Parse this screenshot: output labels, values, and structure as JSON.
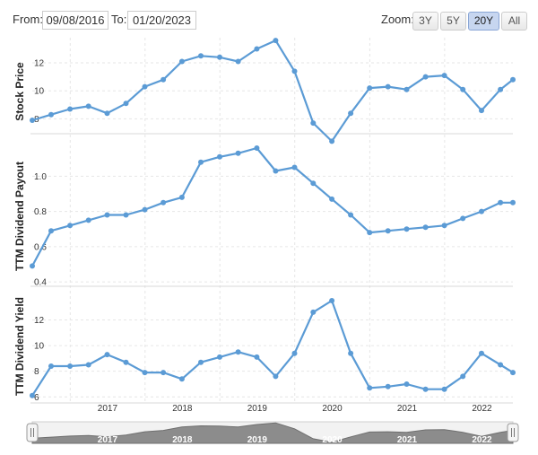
{
  "range": {
    "from_label": "From:",
    "from_value": "09/08/2016",
    "to_label": "To:",
    "to_value": "01/20/2023"
  },
  "zoom": {
    "label": "Zoom:",
    "buttons": [
      {
        "label": "3Y",
        "active": false
      },
      {
        "label": "5Y",
        "active": false
      },
      {
        "label": "20Y",
        "active": true
      },
      {
        "label": "All",
        "active": false
      }
    ]
  },
  "colors": {
    "series": "#5b9bd5",
    "grid": "#e6e6e6",
    "navigator_fill": "#8c8c8c"
  },
  "navigator": {
    "handle_icon": "grip-handle-icon",
    "years": [
      "2017",
      "2018",
      "2019",
      "2020",
      "2021",
      "2022"
    ]
  },
  "chart_data": [
    {
      "type": "line",
      "ylabel": "Stock Price",
      "y_ticks": [
        "8",
        "10",
        "12"
      ],
      "ylim": [
        7.0,
        13.8
      ],
      "x": [
        "2016-06-30",
        "2016-09-30",
        "2016-12-31",
        "2017-03-31",
        "2017-06-30",
        "2017-09-30",
        "2017-12-31",
        "2018-03-31",
        "2018-06-30",
        "2018-09-30",
        "2018-12-31",
        "2019-03-31",
        "2019-06-30",
        "2019-09-30",
        "2019-12-31",
        "2020-03-31",
        "2020-06-30",
        "2020-09-30",
        "2020-12-31",
        "2021-03-31",
        "2021-06-30",
        "2021-09-30",
        "2021-12-31",
        "2022-03-31",
        "2022-06-30",
        "2022-09-30",
        "2022-11-30"
      ],
      "values": [
        7.9,
        8.3,
        8.7,
        8.9,
        8.4,
        9.1,
        10.3,
        10.8,
        12.1,
        12.5,
        12.4,
        12.1,
        13.0,
        13.6,
        11.4,
        7.7,
        6.4,
        8.4,
        10.2,
        10.3,
        10.1,
        11.0,
        11.1,
        10.1,
        8.6,
        10.1,
        10.8
      ]
    },
    {
      "type": "line",
      "ylabel": "TTM Dividend Payout",
      "y_ticks": [
        "0.4",
        "0.6",
        "0.8",
        "1.0"
      ],
      "ylim": [
        0.38,
        1.17
      ],
      "x": [
        "2016-06-30",
        "2016-09-30",
        "2016-12-31",
        "2017-03-31",
        "2017-06-30",
        "2017-09-30",
        "2017-12-31",
        "2018-03-31",
        "2018-06-30",
        "2018-09-30",
        "2018-12-31",
        "2019-03-31",
        "2019-06-30",
        "2019-09-30",
        "2019-12-31",
        "2020-03-31",
        "2020-06-30",
        "2020-09-30",
        "2020-12-31",
        "2021-03-31",
        "2021-06-30",
        "2021-09-30",
        "2021-12-31",
        "2022-03-31",
        "2022-06-30",
        "2022-09-30",
        "2022-11-30"
      ],
      "values": [
        0.49,
        0.69,
        0.72,
        0.75,
        0.78,
        0.78,
        0.81,
        0.85,
        0.88,
        1.08,
        1.11,
        1.13,
        1.16,
        1.03,
        1.05,
        0.96,
        0.87,
        0.78,
        0.68,
        0.69,
        0.7,
        0.71,
        0.72,
        0.76,
        0.8,
        0.85,
        0.85
      ]
    },
    {
      "type": "line",
      "ylabel": "TTM Dividend Yield",
      "y_ticks": [
        "6",
        "8",
        "10",
        "12"
      ],
      "ylim": [
        5.6,
        14.2
      ],
      "x": [
        "2016-06-30",
        "2016-09-30",
        "2016-12-31",
        "2017-03-31",
        "2017-06-30",
        "2017-09-30",
        "2017-12-31",
        "2018-03-31",
        "2018-06-30",
        "2018-09-30",
        "2018-12-31",
        "2019-03-31",
        "2019-06-30",
        "2019-09-30",
        "2019-12-31",
        "2020-03-31",
        "2020-06-30",
        "2020-09-30",
        "2020-12-31",
        "2021-03-31",
        "2021-06-30",
        "2021-09-30",
        "2021-12-31",
        "2022-03-31",
        "2022-06-30",
        "2022-09-30",
        "2022-11-30"
      ],
      "values": [
        6.1,
        8.4,
        8.4,
        8.5,
        9.3,
        8.7,
        7.9,
        7.9,
        7.4,
        8.7,
        9.1,
        9.5,
        9.1,
        7.6,
        9.4,
        12.6,
        13.5,
        9.4,
        6.7,
        6.8,
        7.0,
        6.6,
        6.6,
        7.6,
        9.4,
        8.5,
        7.9
      ]
    }
  ],
  "x_axis_ticks": [
    "2017",
    "2018",
    "2019",
    "2020",
    "2021",
    "2022"
  ]
}
